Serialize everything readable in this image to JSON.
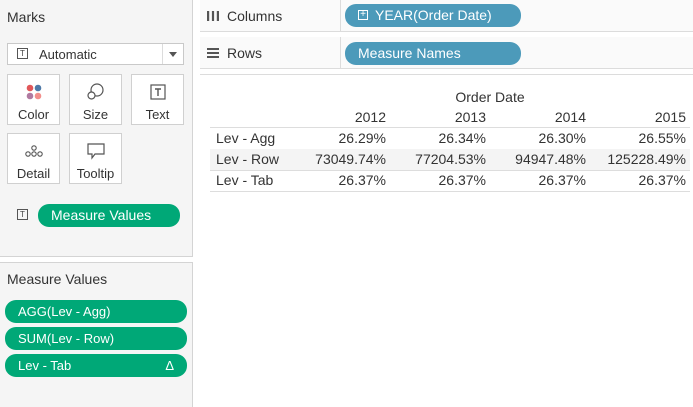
{
  "marks": {
    "title": "Marks",
    "mark_type": "Automatic",
    "buttons": {
      "color": "Color",
      "size": "Size",
      "text": "Text",
      "detail": "Detail",
      "tooltip": "Tooltip"
    },
    "text_pill": "Measure Values"
  },
  "measure_values": {
    "title": "Measure Values",
    "pills": [
      "AGG(Lev - Agg)",
      "SUM(Lev - Row)",
      "Lev - Tab"
    ],
    "delta_glyph": "Δ"
  },
  "shelves": {
    "columns_label": "Columns",
    "columns_pill": "YEAR(Order Date)",
    "rows_label": "Rows",
    "rows_pill": "Measure Names"
  },
  "table": {
    "header": "Order Date",
    "years": [
      "2012",
      "2013",
      "2014",
      "2015"
    ],
    "rows": [
      {
        "name": "Lev - Agg",
        "values": [
          "26.29%",
          "26.34%",
          "26.30%",
          "26.55%"
        ]
      },
      {
        "name": "Lev - Row",
        "values": [
          "73049.74%",
          "77204.53%",
          "94947.48%",
          "125228.49%"
        ]
      },
      {
        "name": "Lev - Tab",
        "values": [
          "26.37%",
          "26.37%",
          "26.37%",
          "26.37%"
        ]
      }
    ]
  },
  "colors": {
    "green_pill": "#00a877",
    "blue_pill": "#4c9aba",
    "pane_bg": "#f5f5f5"
  }
}
